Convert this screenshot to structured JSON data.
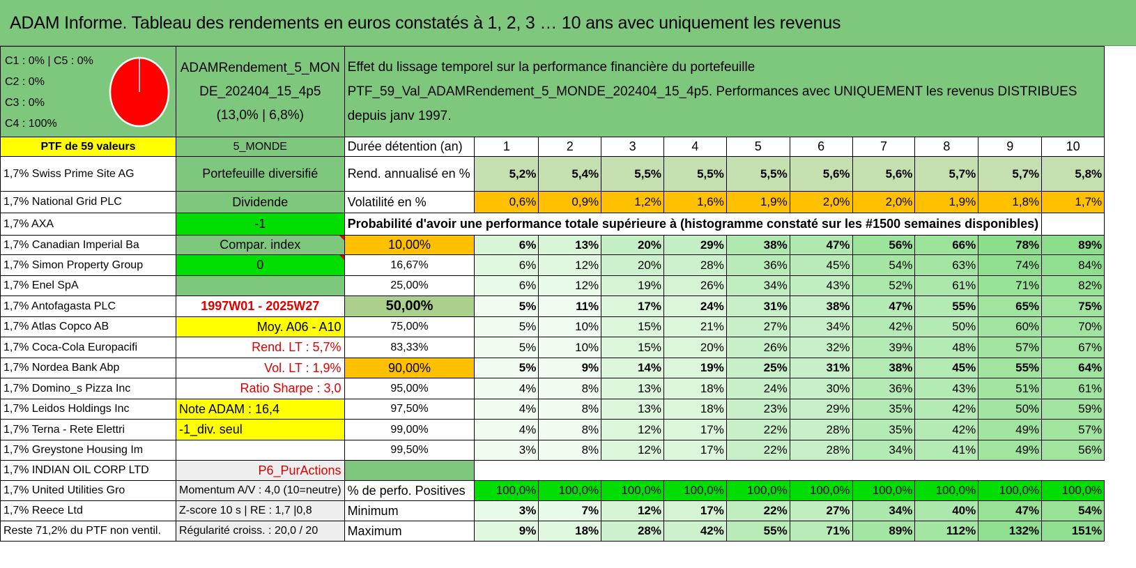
{
  "title": "ADAM Informe. Tableau des rendements en euros constatés à 1, 2, 3 … 10 ans avec uniquement les revenus",
  "composition": [
    "C1 : 0% | C5 : 0%",
    "C2 : 0%",
    "C3 : 0%",
    "C4 : 100%"
  ],
  "pie": {
    "color": "#ff0000",
    "segments": [
      {
        "label": "C4",
        "value": 100
      }
    ]
  },
  "portfolio_name": "ADAMRendement_5_MONDE_202404_15_4p5",
  "portfolio_name_l1": "ADAMRendement_5_MON",
  "portfolio_name_l2": "DE_202404_15_4p5",
  "portfolio_stats": "(13,0% | 6,8%)",
  "description_l1": "Effet du lissage temporel sur la performance financière du portefeuille",
  "description_l2": "PTF_59_Val_ADAMRendement_5_MONDE_202404_15_4p5. Performances avec UNIQUEMENT les revenus DISTRIBUES depuis janv 1997.",
  "ptf_label": "PTF de 59 valeurs",
  "region": "5_MONDE",
  "duration_label": "Durée détention (an)",
  "years": [
    "1",
    "2",
    "3",
    "4",
    "5",
    "6",
    "7",
    "8",
    "9",
    "10"
  ],
  "holdings": [
    "1,7% Swiss Prime Site AG",
    "1,7% National Grid PLC",
    "1,7% AXA",
    "1,7% Canadian Imperial Ba",
    "1,7% Simon Property Group",
    "1,7% Enel SpA",
    "1,7% Antofagasta PLC",
    "1,7% Atlas Copco AB",
    "1,7% Coca-Cola Europacifi",
    "1,7% Nordea Bank Abp",
    "1,7% Domino_s Pizza Inc",
    "1,7% Leidos Holdings Inc",
    "1,7% Terna - Rete Elettri",
    "1,7% Greystone Housing Im",
    "1,7% INDIAN OIL CORP LTD",
    "1,7% United Utilities Gro",
    "1,7% Reece Ltd",
    "Reste 71,2% du PTF non ventil."
  ],
  "side": {
    "diversified": "Portefeuille diversifié",
    "dividend": "Dividende",
    "axa_value": "-1",
    "compar_index": "Compar. index",
    "zero": "0",
    "period": "1997W01 - 2025W27",
    "moy": "Moy. A06 - A10",
    "rend_lt": "Rend. LT : 5,7%",
    "vol_lt": "Vol. LT : 1,9%",
    "sharpe": "Ratio Sharpe : 3,0",
    "note": "Note ADAM : 16,4",
    "div_seul": "-1_div. seul",
    "purchase": "P6_PurActions",
    "momentum": "Momentum A/V : 4,0 (10=neutre)",
    "zscore": "Z-score 10 s | RE : 1,7 |0,8",
    "regularite": "Régularité croiss. : 20,0 / 20"
  },
  "rend_label": "Rend. annualisé en %",
  "rend": [
    "5,2%",
    "5,4%",
    "5,5%",
    "5,5%",
    "5,5%",
    "5,6%",
    "5,6%",
    "5,7%",
    "5,7%",
    "5,8%"
  ],
  "vol_label": "Volatilité en %",
  "vol": [
    "0,6%",
    "0,9%",
    "1,2%",
    "1,6%",
    "1,9%",
    "2,0%",
    "2,0%",
    "1,9%",
    "1,8%",
    "1,7%"
  ],
  "prob_title": "Probabilité d'avoir une performance totale supérieure à (histogramme constaté sur les #1500 semaines disponibles)",
  "prob_rows": [
    {
      "p": "10,00%",
      "v": [
        "6%",
        "13%",
        "20%",
        "29%",
        "38%",
        "47%",
        "56%",
        "66%",
        "78%",
        "89%"
      ]
    },
    {
      "p": "16,67%",
      "v": [
        "6%",
        "12%",
        "20%",
        "28%",
        "36%",
        "45%",
        "54%",
        "63%",
        "74%",
        "84%"
      ]
    },
    {
      "p": "25,00%",
      "v": [
        "6%",
        "12%",
        "19%",
        "26%",
        "34%",
        "43%",
        "52%",
        "61%",
        "71%",
        "82%"
      ]
    },
    {
      "p": "50,00%",
      "v": [
        "5%",
        "11%",
        "17%",
        "24%",
        "31%",
        "38%",
        "47%",
        "55%",
        "65%",
        "75%"
      ]
    },
    {
      "p": "75,00%",
      "v": [
        "5%",
        "10%",
        "15%",
        "21%",
        "27%",
        "34%",
        "42%",
        "50%",
        "60%",
        "70%"
      ]
    },
    {
      "p": "83,33%",
      "v": [
        "5%",
        "10%",
        "15%",
        "20%",
        "26%",
        "32%",
        "39%",
        "48%",
        "57%",
        "67%"
      ]
    },
    {
      "p": "90,00%",
      "v": [
        "5%",
        "9%",
        "14%",
        "19%",
        "25%",
        "31%",
        "38%",
        "45%",
        "55%",
        "64%"
      ]
    },
    {
      "p": "95,00%",
      "v": [
        "4%",
        "8%",
        "13%",
        "18%",
        "24%",
        "30%",
        "36%",
        "43%",
        "51%",
        "61%"
      ]
    },
    {
      "p": "97,50%",
      "v": [
        "4%",
        "8%",
        "13%",
        "18%",
        "23%",
        "29%",
        "35%",
        "42%",
        "50%",
        "59%"
      ]
    },
    {
      "p": "99,00%",
      "v": [
        "4%",
        "8%",
        "12%",
        "17%",
        "22%",
        "28%",
        "35%",
        "42%",
        "49%",
        "57%"
      ]
    },
    {
      "p": "99,50%",
      "v": [
        "3%",
        "8%",
        "12%",
        "17%",
        "22%",
        "28%",
        "34%",
        "41%",
        "49%",
        "56%"
      ]
    }
  ],
  "pos_label": "% de perfo. Positives",
  "pos": [
    "100,0%",
    "100,0%",
    "100,0%",
    "100,0%",
    "100,0%",
    "100,0%",
    "100,0%",
    "100,0%",
    "100,0%",
    "100,0%"
  ],
  "min_label": "Minimum",
  "min": [
    "3%",
    "7%",
    "12%",
    "17%",
    "22%",
    "27%",
    "34%",
    "40%",
    "47%",
    "54%"
  ],
  "max_label": "Maximum",
  "max": [
    "9%",
    "18%",
    "28%",
    "42%",
    "55%",
    "71%",
    "89%",
    "112%",
    "132%",
    "151%"
  ]
}
